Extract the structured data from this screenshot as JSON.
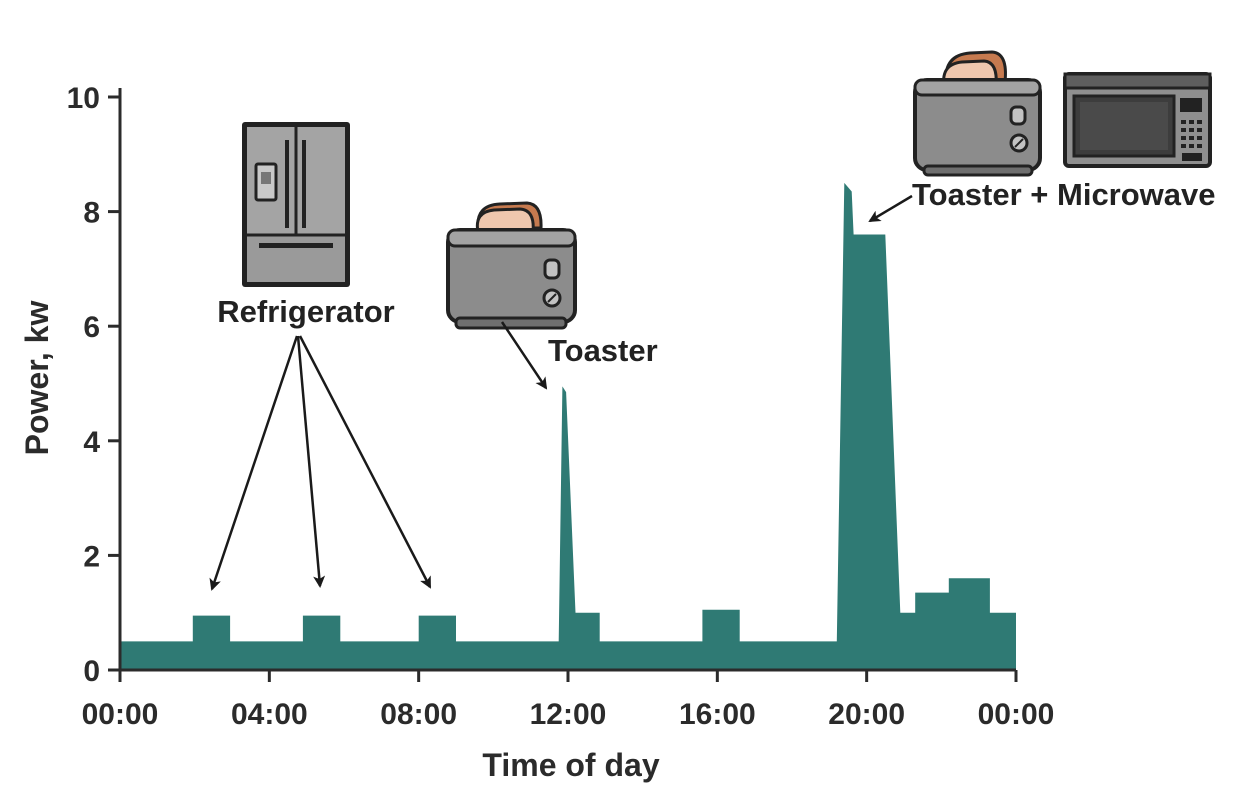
{
  "chart_data": {
    "type": "area",
    "xlabel": "Time of day",
    "ylabel": "Power, kw",
    "xlim": [
      0,
      24
    ],
    "ylim": [
      0,
      10
    ],
    "x_ticks": [
      0,
      4,
      8,
      12,
      16,
      20,
      24
    ],
    "x_tick_labels": [
      "00:00",
      "04:00",
      "08:00",
      "12:00",
      "16:00",
      "20:00",
      "00:00"
    ],
    "y_ticks": [
      0,
      2,
      4,
      6,
      8,
      10
    ],
    "y_tick_labels": [
      "0",
      "2",
      "4",
      "6",
      "8",
      "10"
    ],
    "grid": false,
    "series": [
      {
        "color": "#2f7a74",
        "points": [
          [
            0,
            0.5
          ],
          [
            1.95,
            0.5
          ],
          [
            1.95,
            0.95
          ],
          [
            2.95,
            0.95
          ],
          [
            2.95,
            0.5
          ],
          [
            4.9,
            0.5
          ],
          [
            4.9,
            0.95
          ],
          [
            5.9,
            0.95
          ],
          [
            5.9,
            0.5
          ],
          [
            8.0,
            0.5
          ],
          [
            8.0,
            0.95
          ],
          [
            9.0,
            0.95
          ],
          [
            9.0,
            0.5
          ],
          [
            11.75,
            0.5
          ],
          [
            11.85,
            4.95
          ],
          [
            11.95,
            4.85
          ],
          [
            12.2,
            1.0
          ],
          [
            12.85,
            1.0
          ],
          [
            12.85,
            0.5
          ],
          [
            15.6,
            0.5
          ],
          [
            15.6,
            1.05
          ],
          [
            16.6,
            1.05
          ],
          [
            16.6,
            0.5
          ],
          [
            19.2,
            0.5
          ],
          [
            19.4,
            8.5
          ],
          [
            19.6,
            8.35
          ],
          [
            19.65,
            7.6
          ],
          [
            20.5,
            7.6
          ],
          [
            20.9,
            1.0
          ],
          [
            21.3,
            1.0
          ],
          [
            21.3,
            1.35
          ],
          [
            22.2,
            1.35
          ],
          [
            22.2,
            1.6
          ],
          [
            23.3,
            1.6
          ],
          [
            23.3,
            1.0
          ],
          [
            24,
            1.0
          ],
          [
            24,
            0
          ]
        ]
      }
    ],
    "annotations": [
      {
        "text": "Refrigerator",
        "icon": "refrigerator-icon"
      },
      {
        "text": "Toaster",
        "icon": "toaster-icon"
      },
      {
        "text": "Toaster + Microwave",
        "icon": "toaster-icon, microwave-icon"
      }
    ]
  }
}
